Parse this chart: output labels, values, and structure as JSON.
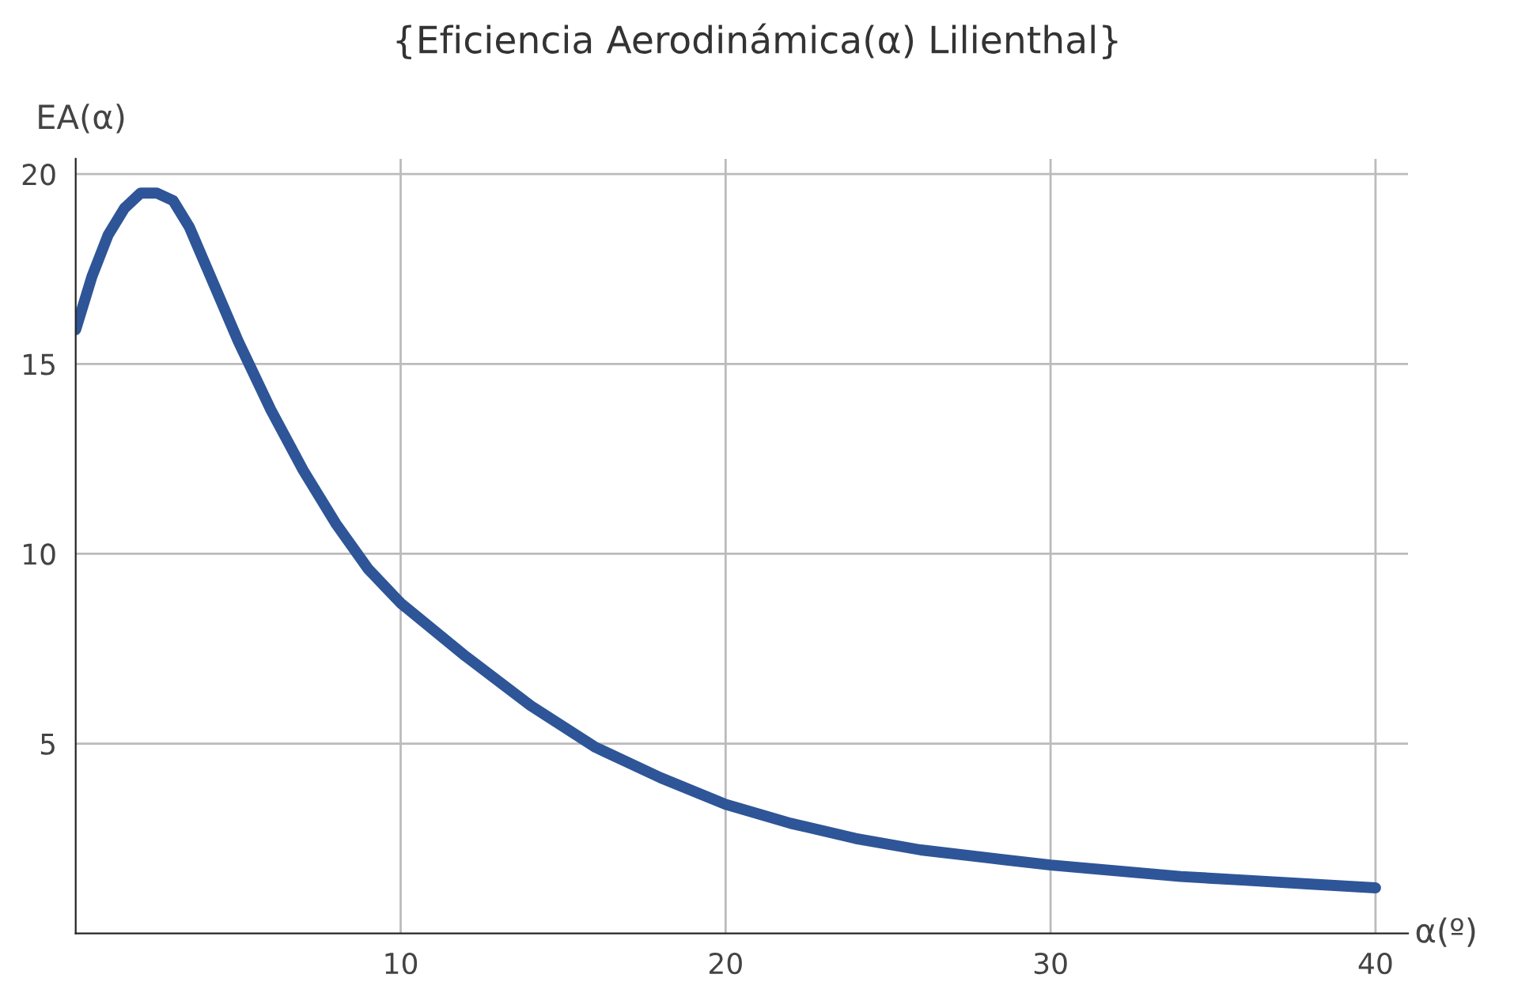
{
  "chart_data": {
    "type": "line",
    "title": "{Eficiencia Aerodinámica(α) Lilienthal}",
    "xlabel": "α(º)",
    "ylabel": "EA(α)",
    "x": [
      0,
      0.5,
      1,
      1.5,
      2,
      2.5,
      3,
      3.5,
      4,
      5,
      6,
      7,
      8,
      9,
      10,
      12,
      14,
      16,
      18,
      20,
      22,
      24,
      26,
      28,
      30,
      32,
      34,
      36,
      38,
      40
    ],
    "series": [
      {
        "color": "#2e5597",
        "values": [
          15.9,
          17.3,
          18.4,
          19.1,
          19.5,
          19.5,
          19.3,
          18.6,
          17.6,
          15.6,
          13.8,
          12.2,
          10.8,
          9.6,
          8.7,
          7.3,
          6.0,
          4.9,
          4.1,
          3.4,
          2.9,
          2.5,
          2.2,
          2.0,
          1.8,
          1.65,
          1.5,
          1.4,
          1.3,
          1.2
        ]
      }
    ],
    "xlim": [
      0,
      41
    ],
    "ylim": [
      0,
      20.4
    ],
    "xticks": [
      10,
      20,
      30,
      40
    ],
    "yticks": [
      5,
      10,
      15,
      20
    ],
    "grid": true,
    "marker": "none",
    "line_style": "solid"
  }
}
